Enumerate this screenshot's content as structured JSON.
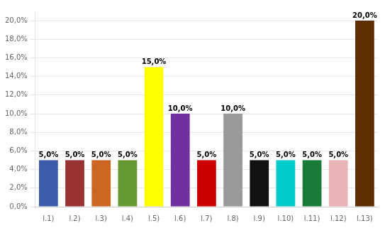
{
  "chart_data": {
    "type": "bar",
    "categories": [
      "l.1)",
      "l.2)",
      "l.3)",
      "l.4)",
      "l.5)",
      "l.6)",
      "l.7)",
      "l.8)",
      "l.9)",
      "l.10)",
      "l.11)",
      "l.12)",
      "l.13)"
    ],
    "values": [
      5.0,
      5.0,
      5.0,
      5.0,
      15.0,
      10.0,
      5.0,
      10.0,
      5.0,
      5.0,
      5.0,
      5.0,
      20.0
    ],
    "value_labels": [
      "5,0%",
      "5,0%",
      "5,0%",
      "5,0%",
      "15,0%",
      "10,0%",
      "5,0%",
      "10,0%",
      "5,0%",
      "5,0%",
      "5,0%",
      "5,0%",
      "20,0%"
    ],
    "colors": [
      "#3B5CA8",
      "#993333",
      "#CC6622",
      "#669933",
      "#FFFF00",
      "#7030A0",
      "#CC0000",
      "#999999",
      "#111111",
      "#00CCCC",
      "#1A7A3A",
      "#E8B4B8",
      "#5C2E00"
    ],
    "ylim": [
      0,
      21
    ],
    "yticks": [
      {
        "value": 0.0,
        "label": "0,0%"
      },
      {
        "value": 2.0,
        "label": "2,0%"
      },
      {
        "value": 4.0,
        "label": "4,0%"
      },
      {
        "value": 6.0,
        "label": "6,0%"
      },
      {
        "value": 8.0,
        "label": "8,0%"
      },
      {
        "value": 10.0,
        "label": "10,0%"
      },
      {
        "value": 12.0,
        "label": "12,0%"
      },
      {
        "value": 14.0,
        "label": "14,0%"
      },
      {
        "value": 16.0,
        "label": "16,0%"
      },
      {
        "value": 18.0,
        "label": "18,0%"
      },
      {
        "value": 20.0,
        "label": "20,0%"
      }
    ],
    "grid": true,
    "data_labels": true
  }
}
